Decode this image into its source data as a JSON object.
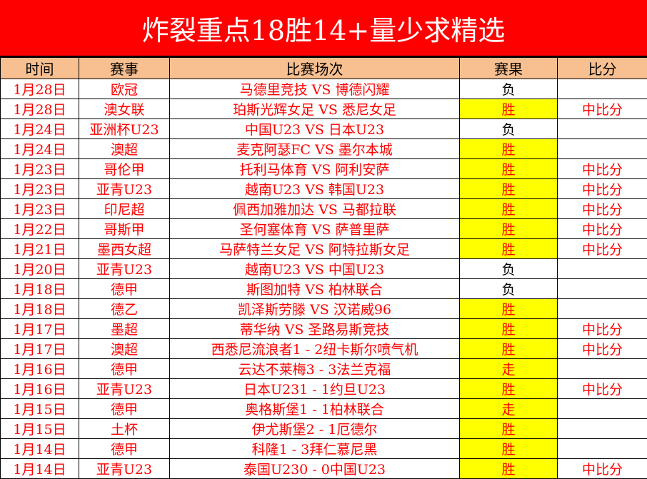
{
  "title": "炸裂重点18胜14+量少求精选",
  "colors": {
    "title_bg": "#ff0000",
    "header_bg": "#f8c090",
    "highlight": "#ffff00",
    "text": "#ff0000"
  },
  "headers": [
    "时间",
    "赛事",
    "比赛场次",
    "赛果",
    "比分"
  ],
  "rows": [
    {
      "date": "1月28日",
      "league": "欧冠",
      "match": "马德里竞技 VS 博德闪耀",
      "result": "负",
      "score": ""
    },
    {
      "date": "1月28日",
      "league": "澳女联",
      "match": "珀斯光辉女足 VS 悉尼女足",
      "result": "胜",
      "score": "中比分"
    },
    {
      "date": "1月24日",
      "league": "亚洲杯U23",
      "match": "中国U23 VS 日本U23",
      "result": "负",
      "score": ""
    },
    {
      "date": "1月24日",
      "league": "澳超",
      "match": "麦克阿瑟FC VS 墨尔本城",
      "result": "胜",
      "score": ""
    },
    {
      "date": "1月23日",
      "league": "哥伦甲",
      "match": "托利马体育 VS 阿利安萨",
      "result": "胜",
      "score": "中比分"
    },
    {
      "date": "1月23日",
      "league": "亚青U23",
      "match": "越南U23 VS 韩国U23",
      "result": "胜",
      "score": "中比分"
    },
    {
      "date": "1月23日",
      "league": "印尼超",
      "match": "佩西加雅加达 VS 马都拉联",
      "result": "胜",
      "score": "中比分"
    },
    {
      "date": "1月22日",
      "league": "哥斯甲",
      "match": "圣何塞体育 VS 萨普里萨",
      "result": "胜",
      "score": "中比分"
    },
    {
      "date": "1月21日",
      "league": "墨西女超",
      "match": "马萨特兰女足 VS 阿特拉斯女足",
      "result": "胜",
      "score": "中比分"
    },
    {
      "date": "1月20日",
      "league": "亚青U23",
      "match": "越南U23 VS 中国U23",
      "result": "负",
      "score": ""
    },
    {
      "date": "1月18日",
      "league": "德甲",
      "match": "斯图加特 VS 柏林联合",
      "result": "负",
      "score": ""
    },
    {
      "date": "1月18日",
      "league": "德乙",
      "match": "凯泽斯劳滕 VS 汉诺威96",
      "result": "胜",
      "score": ""
    },
    {
      "date": "1月17日",
      "league": "墨超",
      "match": "蒂华纳 VS 圣路易斯竞技",
      "result": "胜",
      "score": "中比分"
    },
    {
      "date": "1月17日",
      "league": "澳超",
      "match": "西悉尼流浪者1 - 2纽卡斯尔喷气机",
      "result": "胜",
      "score": "中比分"
    },
    {
      "date": "1月16日",
      "league": "德甲",
      "match": "云达不莱梅3 - 3法兰克福",
      "result": "走",
      "score": ""
    },
    {
      "date": "1月16日",
      "league": "亚青U23",
      "match": "日本U231 - 1约旦U23",
      "result": "胜",
      "score": "中比分"
    },
    {
      "date": "1月15日",
      "league": "德甲",
      "match": "奥格斯堡1 - 1柏林联合",
      "result": "走",
      "score": ""
    },
    {
      "date": "1月15日",
      "league": "土杯",
      "match": "伊尤斯堡2 - 1厄德尔",
      "result": "胜",
      "score": ""
    },
    {
      "date": "1月14日",
      "league": "德甲",
      "match": "科隆1 - 3拜仁慕尼黑",
      "result": "胜",
      "score": ""
    },
    {
      "date": "1月14日",
      "league": "亚青U23",
      "match": "泰国U230 - 0中国U23",
      "result": "胜",
      "score": "中比分"
    }
  ]
}
